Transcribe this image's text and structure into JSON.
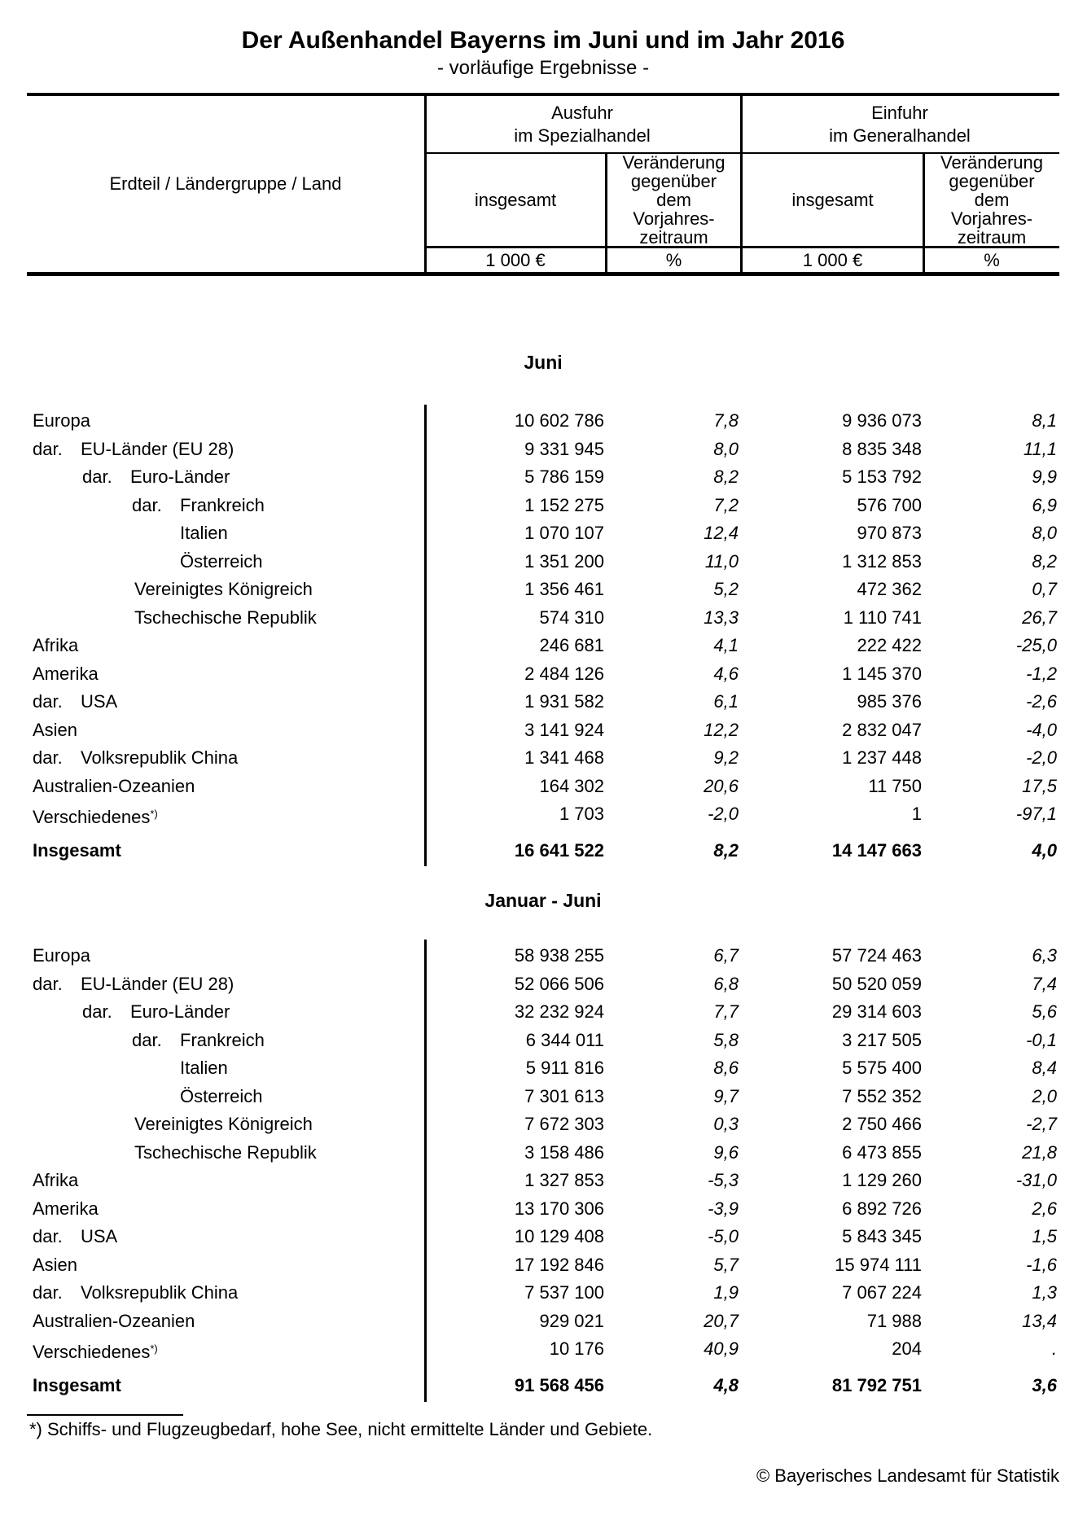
{
  "document": {
    "title": "Der Außenhandel Bayerns im Juni und im Jahr 2016",
    "subtitle": "- vorläufige Ergebnisse -",
    "footnote": "*) Schiffs- und Flugzeugbedarf, hohe See, nicht ermittelte Länder und Gebiete.",
    "copyright": "© Bayerisches Landesamt für Statistik"
  },
  "table_header": {
    "stub": "Erdteil / Ländergruppe / Land",
    "export_group": "Ausfuhr\nim Spezialhandel",
    "import_group": "Einfuhr\nim Generalhandel",
    "total_col": "insgesamt",
    "change_col": "Veränderung\ngegenüber\ndem\nVorjahres-\nzeitraum",
    "unit_value": "1 000 €",
    "unit_pct": "%"
  },
  "columns": [
    "Ausfuhr insgesamt (1 000 €)",
    "Ausfuhr Veränderung (%)",
    "Einfuhr insgesamt (1 000 €)",
    "Einfuhr Veränderung (%)"
  ],
  "sections": [
    {
      "caption": "Juni",
      "rows": [
        {
          "label": "Europa",
          "dar": false,
          "pad": 7,
          "bold": false,
          "values": [
            "10 602 786",
            "7,8",
            "9 936 073",
            "8,1"
          ]
        },
        {
          "label": "EU-Länder (EU 28)",
          "dar": true,
          "pad": 7,
          "bold": false,
          "values": [
            "9 331 945",
            "8,0",
            "8 835 348",
            "11,1"
          ]
        },
        {
          "label": "Euro-Länder",
          "dar": true,
          "pad": 68,
          "bold": false,
          "values": [
            "5 786 159",
            "8,2",
            "5 153 792",
            "9,9"
          ]
        },
        {
          "label": "Frankreich",
          "dar": true,
          "pad": 129,
          "bold": false,
          "values": [
            "1 152 275",
            "7,2",
            "576 700",
            "6,9"
          ]
        },
        {
          "label": "Italien",
          "dar": false,
          "pad": 188,
          "bold": false,
          "values": [
            "1 070 107",
            "12,4",
            "970 873",
            "8,0"
          ]
        },
        {
          "label": "Österreich",
          "dar": false,
          "pad": 188,
          "bold": false,
          "values": [
            "1 351 200",
            "11,0",
            "1 312 853",
            "8,2"
          ]
        },
        {
          "label": "Vereinigtes Königreich",
          "dar": false,
          "pad": 132,
          "bold": false,
          "values": [
            "1 356 461",
            "5,2",
            "472 362",
            "0,7"
          ]
        },
        {
          "label": "Tschechische Republik",
          "dar": false,
          "pad": 132,
          "bold": false,
          "values": [
            "574 310",
            "13,3",
            "1 110 741",
            "26,7"
          ]
        },
        {
          "label": "Afrika",
          "dar": false,
          "pad": 7,
          "bold": false,
          "values": [
            "246 681",
            "4,1",
            "222 422",
            "-25,0"
          ]
        },
        {
          "label": "Amerika",
          "dar": false,
          "pad": 7,
          "bold": false,
          "values": [
            "2 484 126",
            "4,6",
            "1 145 370",
            "-1,2"
          ]
        },
        {
          "label": "USA",
          "dar": true,
          "pad": 7,
          "bold": false,
          "values": [
            "1 931 582",
            "6,1",
            "985 376",
            "-2,6"
          ]
        },
        {
          "label": "Asien",
          "dar": false,
          "pad": 7,
          "bold": false,
          "values": [
            "3 141 924",
            "12,2",
            "2 832 047",
            "-4,0"
          ]
        },
        {
          "label": "Volksrepublik China",
          "dar": true,
          "pad": 7,
          "bold": false,
          "values": [
            "1 341 468",
            "9,2",
            "1 237 448",
            "-2,0"
          ]
        },
        {
          "label": "Australien-Ozeanien",
          "dar": false,
          "pad": 7,
          "bold": false,
          "values": [
            "164 302",
            "20,6",
            "11 750",
            "17,5"
          ]
        },
        {
          "label": "Verschiedenes",
          "sup": "*)",
          "dar": false,
          "pad": 7,
          "bold": false,
          "values": [
            "1 703",
            "-2,0",
            "1",
            "-97,1"
          ]
        },
        {
          "label": "Insgesamt",
          "dar": false,
          "pad": 7,
          "bold": true,
          "values": [
            "16 641 522",
            "8,2",
            "14 147 663",
            "4,0"
          ]
        }
      ]
    },
    {
      "caption": "Januar - Juni",
      "rows": [
        {
          "label": "Europa",
          "dar": false,
          "pad": 7,
          "bold": false,
          "values": [
            "58 938 255",
            "6,7",
            "57 724 463",
            "6,3"
          ]
        },
        {
          "label": "EU-Länder (EU 28)",
          "dar": true,
          "pad": 7,
          "bold": false,
          "values": [
            "52 066 506",
            "6,8",
            "50 520 059",
            "7,4"
          ]
        },
        {
          "label": "Euro-Länder",
          "dar": true,
          "pad": 68,
          "bold": false,
          "values": [
            "32 232 924",
            "7,7",
            "29 314 603",
            "5,6"
          ]
        },
        {
          "label": "Frankreich",
          "dar": true,
          "pad": 129,
          "bold": false,
          "values": [
            "6 344 011",
            "5,8",
            "3 217 505",
            "-0,1"
          ]
        },
        {
          "label": "Italien",
          "dar": false,
          "pad": 188,
          "bold": false,
          "values": [
            "5 911 816",
            "8,6",
            "5 575 400",
            "8,4"
          ]
        },
        {
          "label": "Österreich",
          "dar": false,
          "pad": 188,
          "bold": false,
          "values": [
            "7 301 613",
            "9,7",
            "7 552 352",
            "2,0"
          ]
        },
        {
          "label": "Vereinigtes Königreich",
          "dar": false,
          "pad": 132,
          "bold": false,
          "values": [
            "7 672 303",
            "0,3",
            "2 750 466",
            "-2,7"
          ]
        },
        {
          "label": "Tschechische Republik",
          "dar": false,
          "pad": 132,
          "bold": false,
          "values": [
            "3 158 486",
            "9,6",
            "6 473 855",
            "21,8"
          ]
        },
        {
          "label": "Afrika",
          "dar": false,
          "pad": 7,
          "bold": false,
          "values": [
            "1 327 853",
            "-5,3",
            "1 129 260",
            "-31,0"
          ]
        },
        {
          "label": "Amerika",
          "dar": false,
          "pad": 7,
          "bold": false,
          "values": [
            "13 170 306",
            "-3,9",
            "6 892 726",
            "2,6"
          ]
        },
        {
          "label": "USA",
          "dar": true,
          "pad": 7,
          "bold": false,
          "values": [
            "10 129 408",
            "-5,0",
            "5 843 345",
            "1,5"
          ]
        },
        {
          "label": "Asien",
          "dar": false,
          "pad": 7,
          "bold": false,
          "values": [
            "17 192 846",
            "5,7",
            "15 974 111",
            "-1,6"
          ]
        },
        {
          "label": "Volksrepublik China",
          "dar": true,
          "pad": 7,
          "bold": false,
          "values": [
            "7 537 100",
            "1,9",
            "7 067 224",
            "1,3"
          ]
        },
        {
          "label": "Australien-Ozeanien",
          "dar": false,
          "pad": 7,
          "bold": false,
          "values": [
            "929 021",
            "20,7",
            "71 988",
            "13,4"
          ]
        },
        {
          "label": "Verschiedenes",
          "sup": "*)",
          "dar": false,
          "pad": 7,
          "bold": false,
          "values": [
            "10 176",
            "40,9",
            "204",
            "."
          ]
        },
        {
          "label": "Insgesamt",
          "dar": false,
          "pad": 7,
          "bold": true,
          "values": [
            "91 568 456",
            "4,8",
            "81 792 751",
            "3,6"
          ]
        }
      ]
    }
  ]
}
